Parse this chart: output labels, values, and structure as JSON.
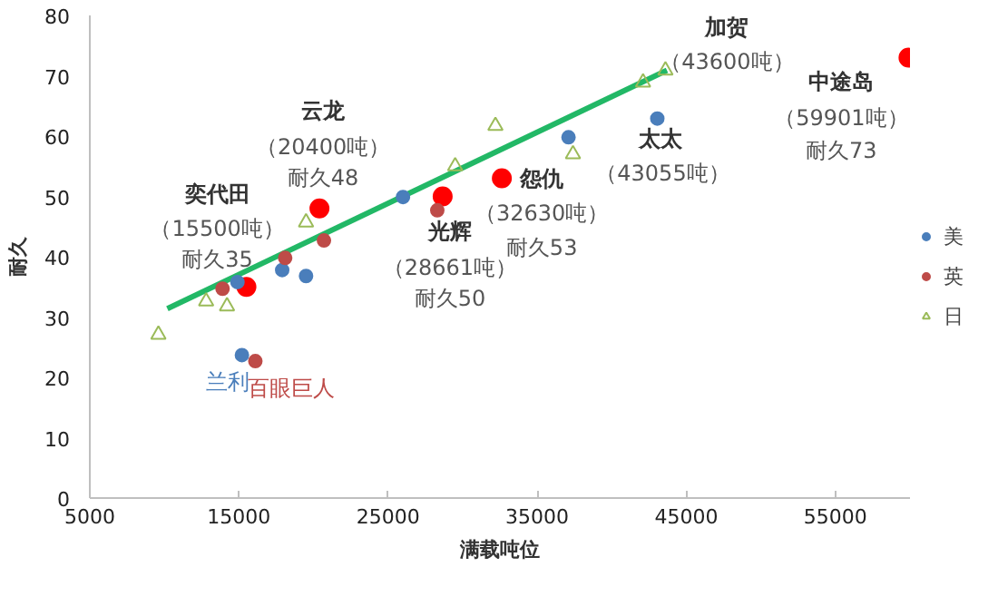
{
  "chart_data": {
    "type": "scatter",
    "xlabel": "满载吨位",
    "ylabel": "耐久",
    "xlim": [
      5000,
      60000
    ],
    "ylim": [
      0,
      80
    ],
    "xticks": [
      5000,
      15000,
      25000,
      35000,
      45000,
      55000
    ],
    "yticks": [
      0,
      10,
      20,
      30,
      40,
      50,
      60,
      70,
      80
    ],
    "grid": false,
    "legend": "right",
    "marker": "circle",
    "series": [
      {
        "name": "美",
        "color": "#4a7ebb",
        "x": [
          14900,
          17900,
          19500,
          26000,
          15200,
          37100,
          43055
        ],
        "values": [
          35.8,
          37.8,
          36.8,
          49.9,
          23.7,
          59.8,
          62.9
        ],
        "value_labels": [
          null,
          null,
          null,
          null,
          "兰利",
          null,
          null
        ]
      },
      {
        "name": "英",
        "color": "#be4b48",
        "x": [
          13900,
          18100,
          20700,
          28300,
          16100
        ],
        "values": [
          34.7,
          39.8,
          42.7,
          47.7,
          22.7
        ],
        "value_labels": [
          null,
          null,
          null,
          null,
          "百眼巨人"
        ]
      },
      {
        "name": "日",
        "color": "#9bbb59",
        "marker": "triangle",
        "x": [
          9600,
          12800,
          14200,
          19500,
          29500,
          32200,
          37400,
          42100,
          43600
        ],
        "values": [
          27.1,
          32.6,
          31.8,
          45.7,
          55,
          61.7,
          57,
          68.9,
          70.9
        ]
      },
      {
        "color": "#ff0000",
        "x": [
          15500,
          20400,
          28661,
          32630,
          59901
        ],
        "values": [
          35,
          48,
          50,
          53,
          73
        ]
      },
      {
        "type": "line",
        "marker": "none",
        "color": "#22b866",
        "x": [
          10200,
          43700
        ],
        "values": [
          31.4,
          70.9
        ]
      }
    ],
    "annotations": [
      "奕代田",
      "（15500吨）",
      "耐久35",
      "云龙",
      "（20400吨）",
      "耐久48",
      "光辉",
      "（28661吨）",
      "耐久50",
      "怨仇",
      "（32630吨）",
      "耐久53",
      "加贺",
      "（43600吨）",
      "太太",
      "（43055吨）",
      "中途岛",
      "（59901吨）",
      "耐久73"
    ]
  }
}
